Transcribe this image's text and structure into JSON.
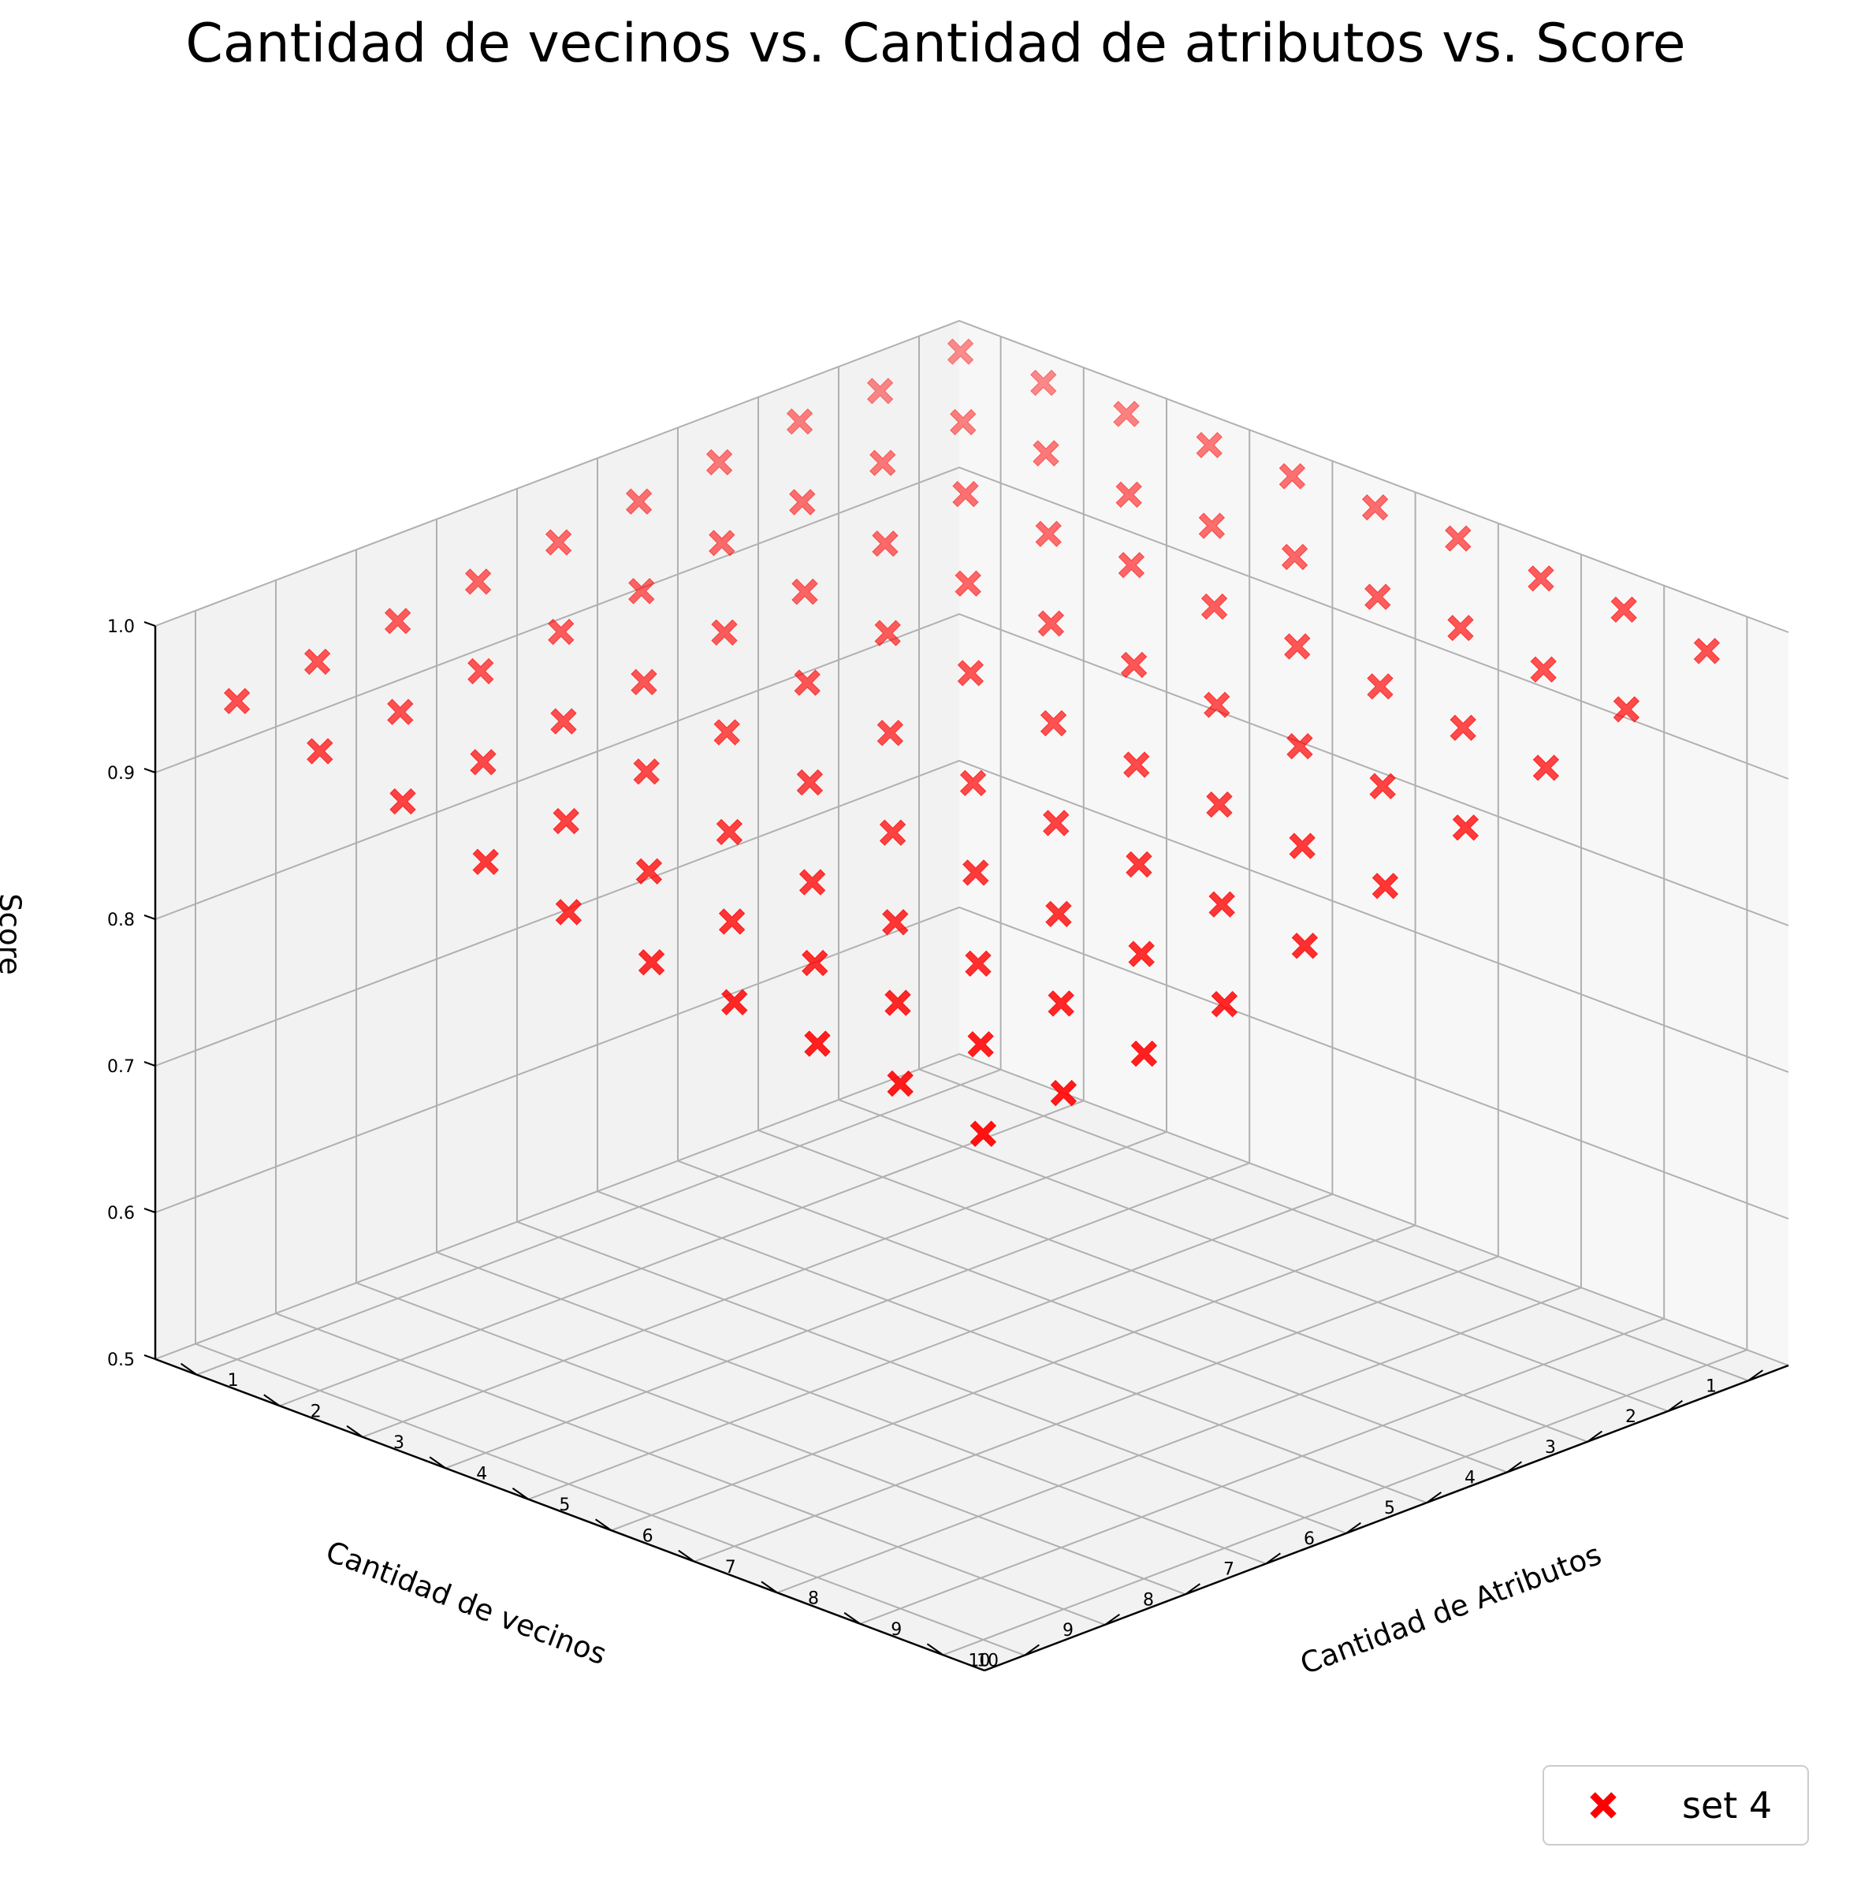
{
  "chart_data": {
    "type": "scatter",
    "projection": "3d",
    "title": "Cantidad de vecinos vs. Cantidad de atributos vs. Score",
    "xlabel": "Cantidad de vecinos",
    "ylabel": "Cantidad de Atributos",
    "zlabel": "Score",
    "xlim": [
      0.5,
      10.5
    ],
    "ylim": [
      0.5,
      10.5
    ],
    "zlim": [
      0.5,
      1.0
    ],
    "x_ticks": [
      "1",
      "2",
      "3",
      "4",
      "5",
      "6",
      "7",
      "8",
      "9",
      "10"
    ],
    "y_ticks": [
      "1",
      "2",
      "3",
      "4",
      "5",
      "6",
      "7",
      "8",
      "9",
      "10"
    ],
    "z_ticks": [
      "0.5",
      "0.6",
      "0.7",
      "0.8",
      "0.9",
      "1.0"
    ],
    "grid": true,
    "legend": {
      "position": "bottom-right"
    },
    "series": [
      {
        "name": "set 4",
        "color": "#ff0000",
        "marker": "X",
        "points": [
          [
            1,
            1,
            1.0
          ],
          [
            1,
            2,
            1.0
          ],
          [
            1,
            3,
            1.0
          ],
          [
            1,
            4,
            1.0
          ],
          [
            1,
            5,
            1.0
          ],
          [
            1,
            6,
            1.0
          ],
          [
            1,
            7,
            1.0
          ],
          [
            1,
            8,
            0.994
          ],
          [
            1,
            9,
            0.994
          ],
          [
            1,
            10,
            0.987
          ],
          [
            2,
            1,
            0.994
          ],
          [
            2,
            2,
            0.994
          ],
          [
            2,
            3,
            0.994
          ],
          [
            2,
            4,
            0.987
          ],
          [
            2,
            5,
            0.987
          ],
          [
            2,
            6,
            0.987
          ],
          [
            2,
            7,
            0.981
          ],
          [
            2,
            8,
            0.981
          ],
          [
            2,
            9,
            0.974
          ],
          [
            2,
            10,
            0.968
          ],
          [
            3,
            1,
            0.994
          ],
          [
            3,
            2,
            0.987
          ],
          [
            3,
            3,
            0.987
          ],
          [
            3,
            4,
            0.981
          ],
          [
            3,
            5,
            0.981
          ],
          [
            3,
            6,
            0.974
          ],
          [
            3,
            7,
            0.968
          ],
          [
            3,
            8,
            0.962
          ],
          [
            3,
            9,
            0.955
          ],
          [
            3,
            10,
            0.949
          ],
          [
            4,
            1,
            0.987
          ],
          [
            4,
            2,
            0.981
          ],
          [
            4,
            3,
            0.974
          ],
          [
            4,
            4,
            0.968
          ],
          [
            4,
            5,
            0.962
          ],
          [
            4,
            6,
            0.955
          ],
          [
            4,
            7,
            0.949
          ],
          [
            4,
            8,
            0.942
          ],
          [
            4,
            9,
            0.936
          ],
          [
            4,
            10,
            0.929
          ],
          [
            5,
            1,
            0.981
          ],
          [
            5,
            2,
            0.974
          ],
          [
            5,
            3,
            0.962
          ],
          [
            5,
            4,
            0.955
          ],
          [
            5,
            5,
            0.949
          ],
          [
            5,
            6,
            0.936
          ],
          [
            5,
            7,
            0.929
          ],
          [
            5,
            8,
            0.923
          ],
          [
            5,
            9,
            0.916
          ],
          [
            5,
            10,
            0.91
          ],
          [
            6,
            1,
            0.974
          ],
          [
            6,
            2,
            0.962
          ],
          [
            6,
            3,
            0.955
          ],
          [
            6,
            4,
            0.942
          ],
          [
            6,
            5,
            0.929
          ],
          [
            6,
            6,
            0.916
          ],
          [
            6,
            7,
            0.91
          ],
          [
            6,
            8,
            0.903
          ],
          [
            6,
            9,
            0.897
          ],
          [
            6,
            10,
            0.89
          ],
          [
            7,
            1,
            0.968
          ],
          [
            7,
            2,
            0.955
          ],
          [
            7,
            3,
            0.942
          ],
          [
            7,
            4,
            0.929
          ],
          [
            7,
            5,
            0.916
          ],
          [
            7,
            6,
            0.903
          ],
          [
            7,
            7,
            0.897
          ],
          [
            7,
            8,
            0.89
          ],
          [
            7,
            9,
            0.884
          ],
          [
            7,
            10,
            0.871
          ],
          [
            8,
            1,
            0.962
          ],
          [
            8,
            2,
            0.949
          ],
          [
            8,
            3,
            0.936
          ],
          [
            8,
            4,
            0.923
          ],
          [
            8,
            5,
            0.903
          ],
          [
            8,
            6,
            0.89
          ],
          [
            8,
            7,
            0.884
          ],
          [
            8,
            8,
            0.877
          ],
          [
            8,
            9,
            0.871
          ],
          [
            8,
            10,
            0.858
          ],
          [
            9,
            1,
            0.955
          ],
          [
            9,
            2,
            0.942
          ],
          [
            9,
            3,
            0.929
          ],
          [
            9,
            4,
            0.91
          ],
          [
            9,
            5,
            0.897
          ],
          [
            9,
            6,
            0.884
          ],
          [
            9,
            7,
            0.877
          ],
          [
            9,
            8,
            0.871
          ],
          [
            9,
            9,
            0.864
          ],
          [
            9,
            10,
            0.852
          ],
          [
            10,
            1,
            0.949
          ],
          [
            10,
            2,
            0.936
          ],
          [
            10,
            3,
            0.923
          ],
          [
            10,
            4,
            0.903
          ],
          [
            10,
            5,
            0.89
          ],
          [
            10,
            6,
            0.877
          ],
          [
            10,
            7,
            0.871
          ],
          [
            10,
            8,
            0.864
          ],
          [
            10,
            9,
            0.858
          ],
          [
            10,
            10,
            0.845
          ]
        ]
      }
    ]
  }
}
